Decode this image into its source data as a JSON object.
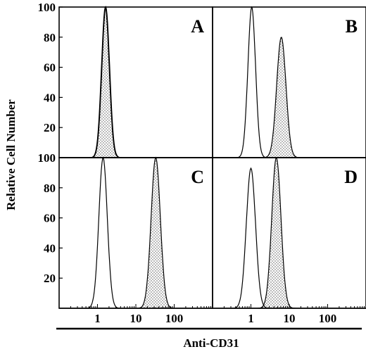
{
  "chart_data": {
    "type": "area",
    "ylabel": "Relative Cell Number",
    "xlabel": "Anti-CD31",
    "x_scale": "log",
    "xlim": [
      0.1,
      1000
    ],
    "ylim": [
      0,
      100
    ],
    "x_ticks": [
      1,
      10,
      100
    ],
    "x_tick_labels": [
      "1",
      "10",
      "100"
    ],
    "y_ticks_top": [
      20,
      40,
      60,
      80,
      100
    ],
    "y_ticks_bottom": [
      20,
      40,
      60,
      80,
      100
    ],
    "panels": [
      {
        "letter": "A",
        "row": 0,
        "col": 0,
        "control": {
          "center": 1.6,
          "sigma": 0.1,
          "peak": 100,
          "fill": false
        },
        "stained": {
          "center": 1.65,
          "sigma": 0.1,
          "peak": 100,
          "fill": true
        }
      },
      {
        "letter": "B",
        "row": 0,
        "col": 1,
        "control": {
          "center": 1.05,
          "sigma": 0.1,
          "peak": 100,
          "fill": false
        },
        "stained": {
          "center": 6.2,
          "sigma": 0.12,
          "peak": 80,
          "fill": true
        }
      },
      {
        "letter": "C",
        "row": 1,
        "col": 0,
        "control": {
          "center": 1.4,
          "sigma": 0.11,
          "peak": 100,
          "fill": false
        },
        "stained": {
          "center": 33,
          "sigma": 0.12,
          "peak": 100,
          "fill": true
        }
      },
      {
        "letter": "D",
        "row": 1,
        "col": 1,
        "control": {
          "center": 1.0,
          "sigma": 0.12,
          "peak": 93,
          "fill": false
        },
        "stained": {
          "center": 4.6,
          "sigma": 0.12,
          "peak": 100,
          "fill": true
        }
      }
    ]
  }
}
